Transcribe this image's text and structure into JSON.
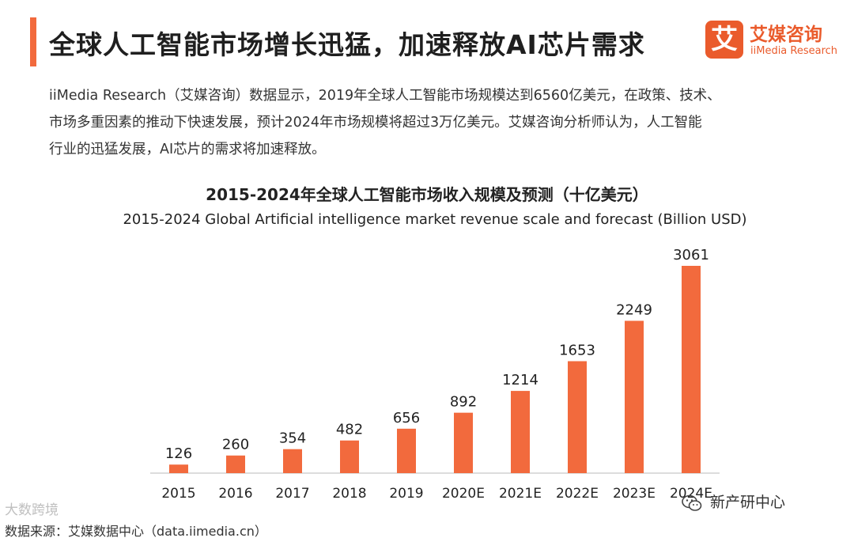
{
  "header": {
    "title": "全球人工智能市场增长迅猛，加速释放AI芯片需求",
    "accent_color": "#f26a3d"
  },
  "logo": {
    "mark": "艾",
    "name_cn": "艾媒咨询",
    "name_en": "iiMedia Research",
    "color": "#ea5b2c"
  },
  "intro": {
    "lines": [
      "iiMedia Research（艾媒咨询）数据显示，2019年全球人工智能市场规模达到6560亿美元，在政策、技术、",
      "市场多重因素的推动下快速发展，预计2024年市场规模将超过3万亿美元。艾媒咨询分析师认为，人工智能",
      "行业的迅猛发展，AI芯片的需求将加速释放。"
    ]
  },
  "chart_data": {
    "type": "bar",
    "title": "2015-2024年全球人工智能市场收入规模及预测（十亿美元）",
    "subtitle": "2015-2024 Global Artificial intelligence market revenue scale and forecast (Billion USD)",
    "categories": [
      "2015",
      "2016",
      "2017",
      "2018",
      "2019",
      "2020E",
      "2021E",
      "2022E",
      "2023E",
      "2024E"
    ],
    "values": [
      126,
      260,
      354,
      482,
      656,
      892,
      1214,
      1653,
      2249,
      3061
    ],
    "xlabel": "",
    "ylabel": "",
    "ylim": [
      0,
      3150
    ],
    "bar_color": "#f26a3d",
    "grid": false,
    "data_labels": true
  },
  "source": {
    "text": "数据来源：艾媒数据中心（data.iimedia.cn）"
  },
  "watermarks": {
    "left": "大数跨境",
    "right": "新产研中心",
    "right_icon": "wechat-icon"
  }
}
